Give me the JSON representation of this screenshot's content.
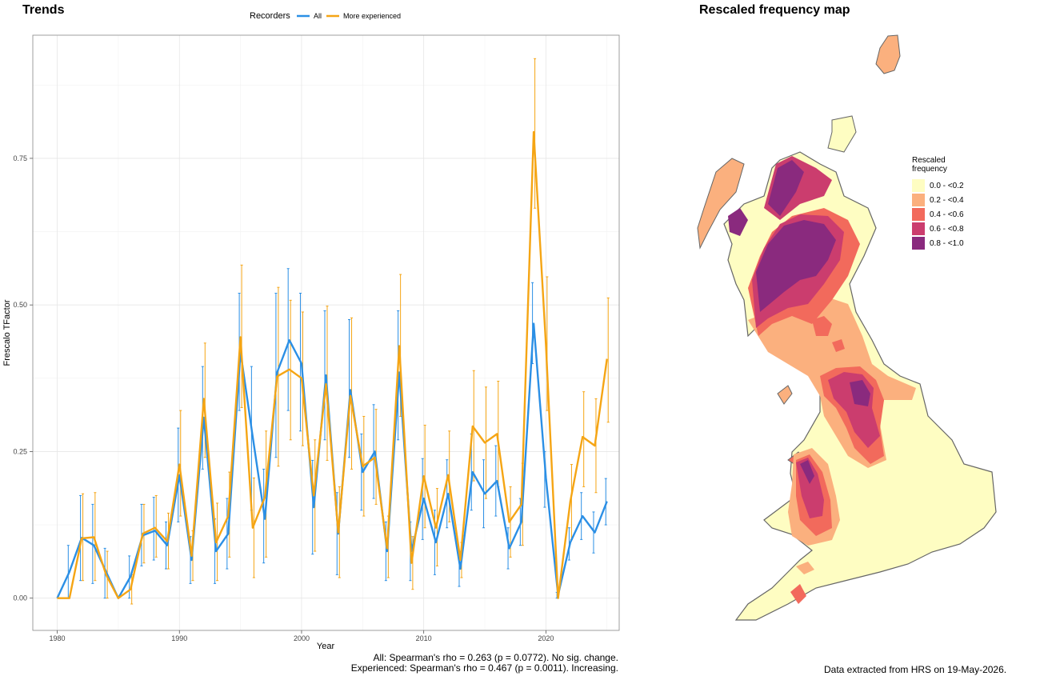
{
  "trends": {
    "title": "Trends",
    "legend_title": "Recorders",
    "stats": [
      "All: Spearman's rho = 0.263 (p = 0.0772). No sig. change.",
      "Experienced: Spearman's rho = 0.467 (p = 0.0011). Increasing."
    ]
  },
  "map": {
    "title": "Rescaled frequency map",
    "legend_title_1": "Rescaled",
    "legend_title_2": "frequency",
    "legend": [
      {
        "label": "0.0 - <0.2",
        "color": "#fefdc2"
      },
      {
        "label": "0.2 - <0.4",
        "color": "#fbb07e"
      },
      {
        "label": "0.4 - <0.6",
        "color": "#f26a5c"
      },
      {
        "label": "0.6 - <0.8",
        "color": "#cb3d6e"
      },
      {
        "label": "0.8 - <1.0",
        "color": "#8a2a7e"
      }
    ],
    "source": "Data extracted from HRS on 19-May-2026."
  },
  "chart_data": {
    "type": "line",
    "title": "Trends",
    "xlabel": "Year",
    "ylabel": "Frescalo TFactor",
    "xlim": [
      1978,
      2026
    ],
    "ylim": [
      -0.055,
      0.96
    ],
    "xticks": [
      1980,
      1990,
      2000,
      2010,
      2020
    ],
    "yticks": [
      0,
      0.25,
      0.5,
      0.75
    ],
    "ytick_labels": [
      "0.00",
      "0.25",
      "0.50",
      "0.75"
    ],
    "grid": true,
    "legend_position": "top",
    "x": [
      1980,
      1981,
      1982,
      1983,
      1984,
      1985,
      1986,
      1987,
      1988,
      1989,
      1990,
      1991,
      1992,
      1993,
      1994,
      1995,
      1996,
      1997,
      1998,
      1999,
      2000,
      2001,
      2002,
      2003,
      2004,
      2005,
      2006,
      2007,
      2008,
      2009,
      2010,
      2011,
      2012,
      2013,
      2014,
      2015,
      2016,
      2017,
      2018,
      2019,
      2020,
      2021,
      2022,
      2023,
      2024,
      2025
    ],
    "series": [
      {
        "name": "All",
        "color": "#2b8fe5",
        "values": [
          0.0,
          0.045,
          0.103,
          0.09,
          0.045,
          0.0,
          0.037,
          0.107,
          0.115,
          0.09,
          0.21,
          0.065,
          0.308,
          0.08,
          0.11,
          0.42,
          0.275,
          0.135,
          0.385,
          0.44,
          0.4,
          0.155,
          0.38,
          0.11,
          0.355,
          0.215,
          0.25,
          0.08,
          0.385,
          0.08,
          0.17,
          0.095,
          0.178,
          0.05,
          0.215,
          0.178,
          0.2,
          0.085,
          0.13,
          0.468,
          0.205,
          0.005,
          0.095,
          0.14,
          0.112,
          0.165
        ],
        "lower": [
          0.0,
          0.0,
          0.03,
          0.025,
          0.0,
          0.0,
          0.0,
          0.055,
          0.065,
          0.05,
          0.13,
          0.025,
          0.22,
          0.025,
          0.05,
          0.32,
          0.15,
          0.06,
          0.24,
          0.32,
          0.285,
          0.075,
          0.27,
          0.04,
          0.24,
          0.15,
          0.17,
          0.03,
          0.27,
          0.03,
          0.1,
          0.04,
          0.12,
          0.02,
          0.15,
          0.12,
          0.14,
          0.05,
          0.09,
          0.4,
          0.155,
          0.0,
          0.065,
          0.1,
          0.077,
          0.125
        ],
        "upper": [
          0.0,
          0.09,
          0.175,
          0.16,
          0.085,
          0.0,
          0.072,
          0.16,
          0.172,
          0.13,
          0.29,
          0.105,
          0.395,
          0.135,
          0.17,
          0.52,
          0.395,
          0.22,
          0.52,
          0.562,
          0.52,
          0.235,
          0.49,
          0.18,
          0.475,
          0.28,
          0.33,
          0.13,
          0.49,
          0.13,
          0.238,
          0.15,
          0.236,
          0.08,
          0.28,
          0.236,
          0.26,
          0.12,
          0.17,
          0.538,
          0.25,
          0.01,
          0.12,
          0.18,
          0.147,
          0.204
        ]
      },
      {
        "name": "More experienced",
        "color": "#f5a514",
        "values": [
          0.0,
          0.0,
          0.102,
          0.104,
          0.04,
          0.0,
          0.015,
          0.11,
          0.12,
          0.097,
          0.228,
          0.072,
          0.34,
          0.095,
          0.14,
          0.445,
          0.12,
          0.172,
          0.378,
          0.39,
          0.375,
          0.175,
          0.365,
          0.112,
          0.345,
          0.225,
          0.24,
          0.085,
          0.43,
          0.06,
          0.208,
          0.12,
          0.21,
          0.065,
          0.293,
          0.265,
          0.28,
          0.13,
          0.16,
          0.795,
          0.432,
          0.0,
          0.165,
          0.275,
          0.26,
          0.408
        ],
        "lower": [
          0.0,
          0.0,
          0.03,
          0.03,
          0.0,
          0.0,
          -0.01,
          0.06,
          0.07,
          0.05,
          0.14,
          0.03,
          0.24,
          0.03,
          0.07,
          0.325,
          0.035,
          0.07,
          0.225,
          0.27,
          0.26,
          0.08,
          0.235,
          0.035,
          0.22,
          0.14,
          0.16,
          0.035,
          0.31,
          0.015,
          0.12,
          0.055,
          0.13,
          0.035,
          0.2,
          0.17,
          0.19,
          0.07,
          0.09,
          0.665,
          0.32,
          0.0,
          0.1,
          0.19,
          0.18,
          0.3
        ],
        "upper": [
          0.0,
          0.0,
          0.178,
          0.18,
          0.08,
          0.0,
          0.04,
          0.16,
          0.175,
          0.145,
          0.32,
          0.115,
          0.435,
          0.162,
          0.215,
          0.568,
          0.205,
          0.285,
          0.53,
          0.508,
          0.488,
          0.27,
          0.498,
          0.19,
          0.478,
          0.31,
          0.322,
          0.14,
          0.552,
          0.105,
          0.295,
          0.187,
          0.285,
          0.095,
          0.388,
          0.36,
          0.37,
          0.19,
          0.23,
          0.92,
          0.548,
          0.0,
          0.228,
          0.352,
          0.34,
          0.512
        ]
      }
    ]
  }
}
